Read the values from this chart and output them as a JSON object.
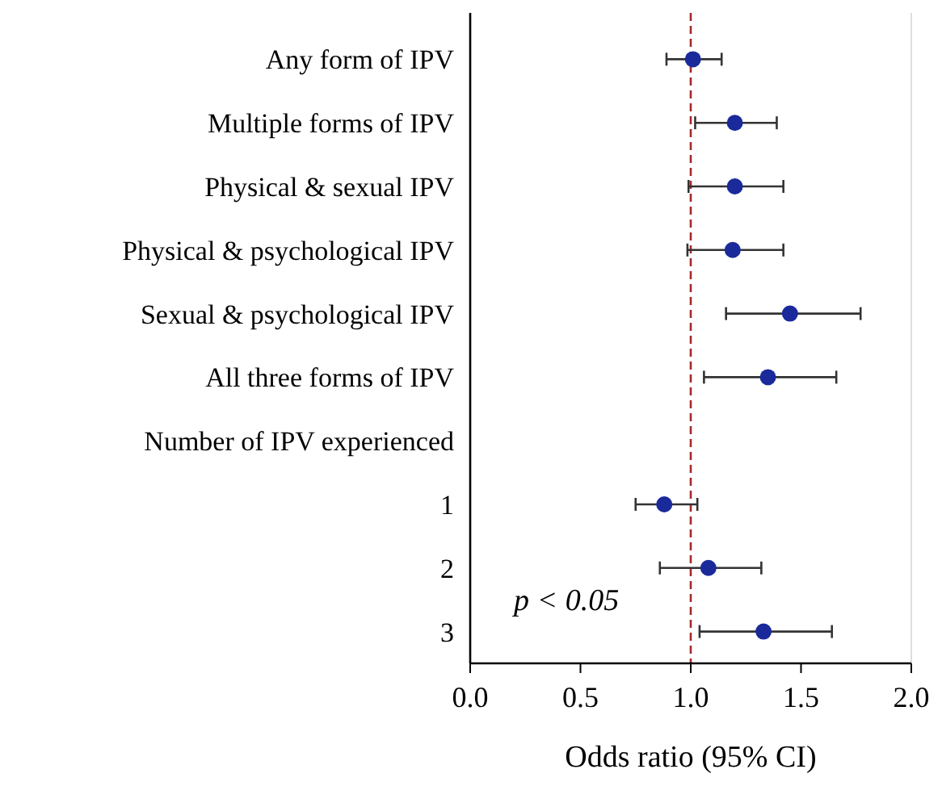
{
  "chart_data": {
    "type": "scatter",
    "orientation": "horizontal",
    "xlabel": "Odds ratio (95% CI)",
    "categories": [
      "Any form of IPV",
      "Multiple forms of IPV",
      "Physical & sexual IPV",
      "Physical & psychological IPV",
      "Sexual & psychological IPV",
      "All three forms of IPV",
      "Number of IPV experienced",
      "1",
      "2",
      "3"
    ],
    "series": [
      {
        "color": "#1a2a9a",
        "values": [
          1.01,
          1.2,
          1.2,
          1.19,
          1.45,
          1.35,
          null,
          0.88,
          1.08,
          1.33
        ],
        "errors": [
          [
            0.89,
            1.14
          ],
          [
            1.02,
            1.39
          ],
          [
            0.99,
            1.42
          ],
          [
            0.985,
            1.42
          ],
          [
            1.16,
            1.77
          ],
          [
            1.06,
            1.66
          ],
          null,
          [
            0.75,
            1.03
          ],
          [
            0.86,
            1.32
          ],
          [
            1.04,
            1.64
          ]
        ]
      }
    ],
    "xlim": [
      0,
      2
    ],
    "xticks": [
      {
        "value": 0,
        "label": "0.0"
      },
      {
        "value": 0.5,
        "label": "0.5"
      },
      {
        "value": 1,
        "label": "1.0"
      },
      {
        "value": 1.5,
        "label": "1.5"
      },
      {
        "value": 2,
        "label": "2.0"
      }
    ],
    "ref_lines": [
      {
        "axis": "x",
        "value": 1,
        "color": "#a52a2a",
        "line_style": "dashed"
      }
    ],
    "annotations": [
      "p < 0.05"
    ],
    "marker": "circle"
  }
}
